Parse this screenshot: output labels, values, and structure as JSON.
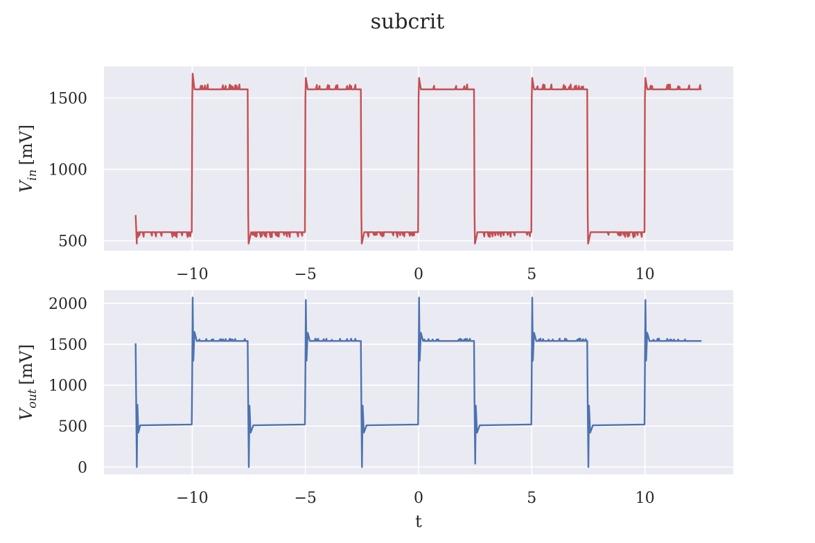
{
  "figure": {
    "title": "subcrit",
    "xlabel": "t"
  },
  "chart_data": [
    {
      "type": "line",
      "title": "",
      "xlabel": "",
      "ylabel_base": "V",
      "ylabel_sub": "in",
      "ylabel_unit": "[mV]",
      "xlim": [
        -13.9,
        13.9
      ],
      "ylim": [
        430,
        1720
      ],
      "xticks": [
        -10,
        -5,
        0,
        5,
        10
      ],
      "xtick_labels": [
        "−10",
        "−5",
        "0",
        "5",
        "10"
      ],
      "yticks": [
        500,
        1000,
        1500
      ],
      "ytick_labels": [
        "500",
        "1000",
        "1500"
      ],
      "grid": true,
      "series": [
        {
          "color": "#c44e52",
          "t": [
            -12.5,
            -12.45,
            -12.45,
            -10.02,
            -10.0,
            -9.98,
            -9.9,
            -9.8,
            -7.55,
            -7.53,
            -7.51,
            -7.4,
            -5.02,
            -5.0,
            -4.98,
            -4.9,
            -4.8,
            -2.55,
            -2.53,
            -2.51,
            -2.4,
            -0.02,
            0.0,
            0.02,
            0.1,
            0.2,
            2.45,
            2.47,
            2.49,
            2.6,
            4.98,
            5.0,
            5.02,
            5.1,
            5.2,
            7.45,
            7.47,
            7.49,
            7.6,
            9.98,
            10.0,
            10.02,
            10.1,
            10.2,
            12.5
          ],
          "v": [
            680,
            480,
            560,
            560,
            1500,
            1670,
            1560,
            1560,
            1560,
            700,
            480,
            560,
            560,
            1500,
            1640,
            1560,
            1560,
            1560,
            700,
            480,
            560,
            560,
            1500,
            1640,
            1560,
            1560,
            1560,
            700,
            480,
            560,
            560,
            1500,
            1640,
            1560,
            1560,
            1560,
            700,
            480,
            560,
            560,
            1500,
            1640,
            1560,
            1560,
            1560
          ],
          "noise": {
            "amplitude": 30,
            "low_level": 560,
            "high_level": 1560
          }
        }
      ]
    },
    {
      "type": "line",
      "title": "",
      "xlabel": "t",
      "ylabel_base": "V",
      "ylabel_sub": "out",
      "ylabel_unit": "[mV]",
      "xlim": [
        -13.9,
        13.9
      ],
      "ylim": [
        -90,
        2160
      ],
      "xticks": [
        -10,
        -5,
        0,
        5,
        10
      ],
      "xtick_labels": [
        "−10",
        "−5",
        "0",
        "5",
        "10"
      ],
      "yticks": [
        0,
        500,
        1000,
        1500,
        2000
      ],
      "ytick_labels": [
        "0",
        "500",
        "1000",
        "1500",
        "2000"
      ],
      "grid": true,
      "series": [
        {
          "color": "#4c72b0",
          "t": [
            -12.5,
            -12.45,
            -12.42,
            -12.38,
            -12.3,
            -10.02,
            -10.0,
            -9.98,
            -9.95,
            -9.9,
            -9.8,
            -7.55,
            -7.53,
            -7.5,
            -7.47,
            -7.42,
            -7.3,
            -5.02,
            -5.0,
            -4.98,
            -4.95,
            -4.9,
            -4.8,
            -2.55,
            -2.53,
            -2.5,
            -2.47,
            -2.42,
            -2.3,
            -0.02,
            0.0,
            0.02,
            0.05,
            0.1,
            0.2,
            2.45,
            2.47,
            2.5,
            2.53,
            2.58,
            2.7,
            4.98,
            5.0,
            5.02,
            5.05,
            5.1,
            5.2,
            7.45,
            7.47,
            7.5,
            7.53,
            7.58,
            7.7,
            9.98,
            10.0,
            10.02,
            10.05,
            10.1,
            10.2,
            12.5
          ],
          "v": [
            1510,
            0,
            760,
            420,
            510,
            520,
            1200,
            2070,
            1300,
            1650,
            1540,
            1540,
            800,
            0,
            750,
            420,
            510,
            520,
            1200,
            2040,
            1300,
            1640,
            1540,
            1540,
            800,
            0,
            750,
            420,
            510,
            520,
            1200,
            2070,
            1300,
            1640,
            1540,
            1540,
            800,
            40,
            750,
            420,
            510,
            520,
            1200,
            2070,
            1300,
            1640,
            1540,
            1540,
            800,
            0,
            750,
            420,
            510,
            520,
            1200,
            2040,
            1300,
            1640,
            1540,
            1540
          ],
          "noise": {
            "amplitude": 25,
            "low_level": 505,
            "high_level": 1540
          }
        }
      ]
    }
  ]
}
